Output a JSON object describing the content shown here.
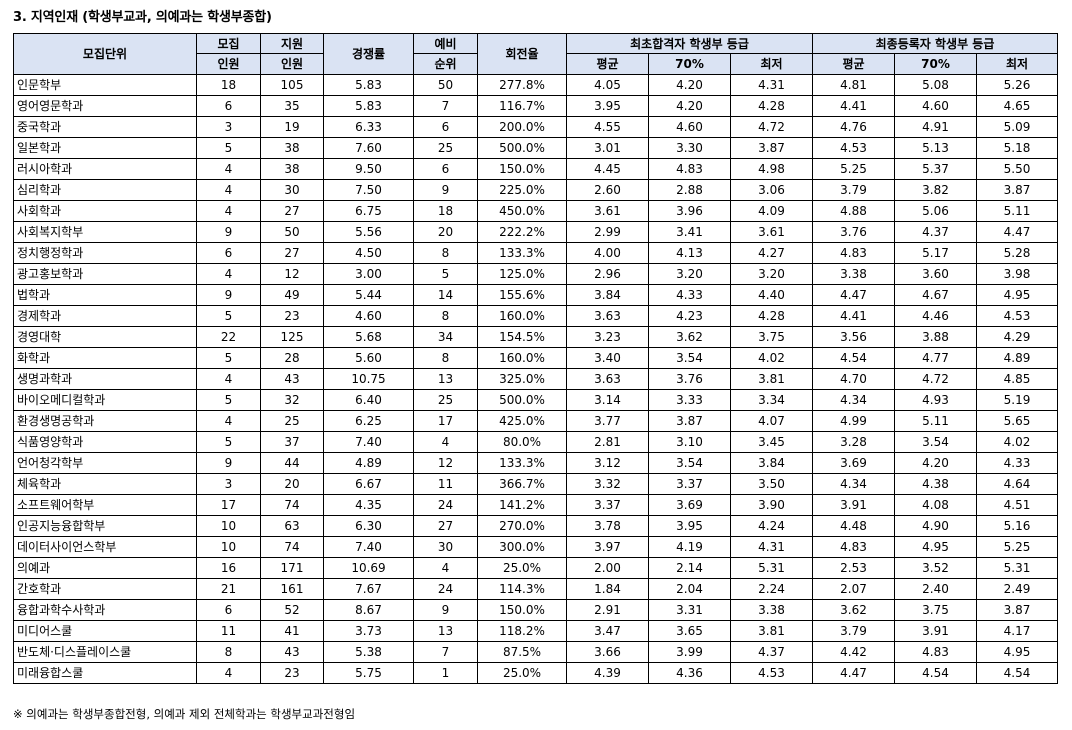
{
  "title": "3. 지역인재 (학생부교과, 의예과는 학생부종합)",
  "headers": {
    "unit": "모집단위",
    "quota_top": "모집",
    "quota_bottom": "인원",
    "applicants_top": "지원",
    "applicants_bottom": "인원",
    "competition": "경쟁률",
    "waitlist_top": "예비",
    "waitlist_bottom": "순위",
    "turnover": "회전율",
    "initial_group": "최초합격자 학생부 등급",
    "final_group": "최종등록자 학생부 등급",
    "avg": "평균",
    "p70": "70%",
    "lowest": "최저"
  },
  "rows": [
    [
      "인문학부",
      "18",
      "105",
      "5.83",
      "50",
      "277.8%",
      "4.05",
      "4.20",
      "4.31",
      "4.81",
      "5.08",
      "5.26"
    ],
    [
      "영어영문학과",
      "6",
      "35",
      "5.83",
      "7",
      "116.7%",
      "3.95",
      "4.20",
      "4.28",
      "4.41",
      "4.60",
      "4.65"
    ],
    [
      "중국학과",
      "3",
      "19",
      "6.33",
      "6",
      "200.0%",
      "4.55",
      "4.60",
      "4.72",
      "4.76",
      "4.91",
      "5.09"
    ],
    [
      "일본학과",
      "5",
      "38",
      "7.60",
      "25",
      "500.0%",
      "3.01",
      "3.30",
      "3.87",
      "4.53",
      "5.13",
      "5.18"
    ],
    [
      "러시아학과",
      "4",
      "38",
      "9.50",
      "6",
      "150.0%",
      "4.45",
      "4.83",
      "4.98",
      "5.25",
      "5.37",
      "5.50"
    ],
    [
      "심리학과",
      "4",
      "30",
      "7.50",
      "9",
      "225.0%",
      "2.60",
      "2.88",
      "3.06",
      "3.79",
      "3.82",
      "3.87"
    ],
    [
      "사회학과",
      "4",
      "27",
      "6.75",
      "18",
      "450.0%",
      "3.61",
      "3.96",
      "4.09",
      "4.88",
      "5.06",
      "5.11"
    ],
    [
      "사회복지학부",
      "9",
      "50",
      "5.56",
      "20",
      "222.2%",
      "2.99",
      "3.41",
      "3.61",
      "3.76",
      "4.37",
      "4.47"
    ],
    [
      "정치행정학과",
      "6",
      "27",
      "4.50",
      "8",
      "133.3%",
      "4.00",
      "4.13",
      "4.27",
      "4.83",
      "5.17",
      "5.28"
    ],
    [
      "광고홍보학과",
      "4",
      "12",
      "3.00",
      "5",
      "125.0%",
      "2.96",
      "3.20",
      "3.20",
      "3.38",
      "3.60",
      "3.98"
    ],
    [
      "법학과",
      "9",
      "49",
      "5.44",
      "14",
      "155.6%",
      "3.84",
      "4.33",
      "4.40",
      "4.47",
      "4.67",
      "4.95"
    ],
    [
      "경제학과",
      "5",
      "23",
      "4.60",
      "8",
      "160.0%",
      "3.63",
      "4.23",
      "4.28",
      "4.41",
      "4.46",
      "4.53"
    ],
    [
      "경영대학",
      "22",
      "125",
      "5.68",
      "34",
      "154.5%",
      "3.23",
      "3.62",
      "3.75",
      "3.56",
      "3.88",
      "4.29"
    ],
    [
      "화학과",
      "5",
      "28",
      "5.60",
      "8",
      "160.0%",
      "3.40",
      "3.54",
      "4.02",
      "4.54",
      "4.77",
      "4.89"
    ],
    [
      "생명과학과",
      "4",
      "43",
      "10.75",
      "13",
      "325.0%",
      "3.63",
      "3.76",
      "3.81",
      "4.70",
      "4.72",
      "4.85"
    ],
    [
      "바이오메디컬학과",
      "5",
      "32",
      "6.40",
      "25",
      "500.0%",
      "3.14",
      "3.33",
      "3.34",
      "4.34",
      "4.93",
      "5.19"
    ],
    [
      "환경생명공학과",
      "4",
      "25",
      "6.25",
      "17",
      "425.0%",
      "3.77",
      "3.87",
      "4.07",
      "4.99",
      "5.11",
      "5.65"
    ],
    [
      "식품영양학과",
      "5",
      "37",
      "7.40",
      "4",
      "80.0%",
      "2.81",
      "3.10",
      "3.45",
      "3.28",
      "3.54",
      "4.02"
    ],
    [
      "언어청각학부",
      "9",
      "44",
      "4.89",
      "12",
      "133.3%",
      "3.12",
      "3.54",
      "3.84",
      "3.69",
      "4.20",
      "4.33"
    ],
    [
      "체육학과",
      "3",
      "20",
      "6.67",
      "11",
      "366.7%",
      "3.32",
      "3.37",
      "3.50",
      "4.34",
      "4.38",
      "4.64"
    ],
    [
      "소프트웨어학부",
      "17",
      "74",
      "4.35",
      "24",
      "141.2%",
      "3.37",
      "3.69",
      "3.90",
      "3.91",
      "4.08",
      "4.51"
    ],
    [
      "인공지능융합학부",
      "10",
      "63",
      "6.30",
      "27",
      "270.0%",
      "3.78",
      "3.95",
      "4.24",
      "4.48",
      "4.90",
      "5.16"
    ],
    [
      "데이터사이언스학부",
      "10",
      "74",
      "7.40",
      "30",
      "300.0%",
      "3.97",
      "4.19",
      "4.31",
      "4.83",
      "4.95",
      "5.25"
    ],
    [
      "의예과",
      "16",
      "171",
      "10.69",
      "4",
      "25.0%",
      "2.00",
      "2.14",
      "5.31",
      "2.53",
      "3.52",
      "5.31"
    ],
    [
      "간호학과",
      "21",
      "161",
      "7.67",
      "24",
      "114.3%",
      "1.84",
      "2.04",
      "2.24",
      "2.07",
      "2.40",
      "2.49"
    ],
    [
      "융합과학수사학과",
      "6",
      "52",
      "8.67",
      "9",
      "150.0%",
      "2.91",
      "3.31",
      "3.38",
      "3.62",
      "3.75",
      "3.87"
    ],
    [
      "미디어스쿨",
      "11",
      "41",
      "3.73",
      "13",
      "118.2%",
      "3.47",
      "3.65",
      "3.81",
      "3.79",
      "3.91",
      "4.17"
    ],
    [
      "반도체·디스플레이스쿨",
      "8",
      "43",
      "5.38",
      "7",
      "87.5%",
      "3.66",
      "3.99",
      "4.37",
      "4.42",
      "4.83",
      "4.95"
    ],
    [
      "미래융합스쿨",
      "4",
      "23",
      "5.75",
      "1",
      "25.0%",
      "4.39",
      "4.36",
      "4.53",
      "4.47",
      "4.54",
      "4.54"
    ]
  ],
  "note": "※ 의예과는 학생부종합전형, 의예과 제외 전체학과는 학생부교과전형임"
}
